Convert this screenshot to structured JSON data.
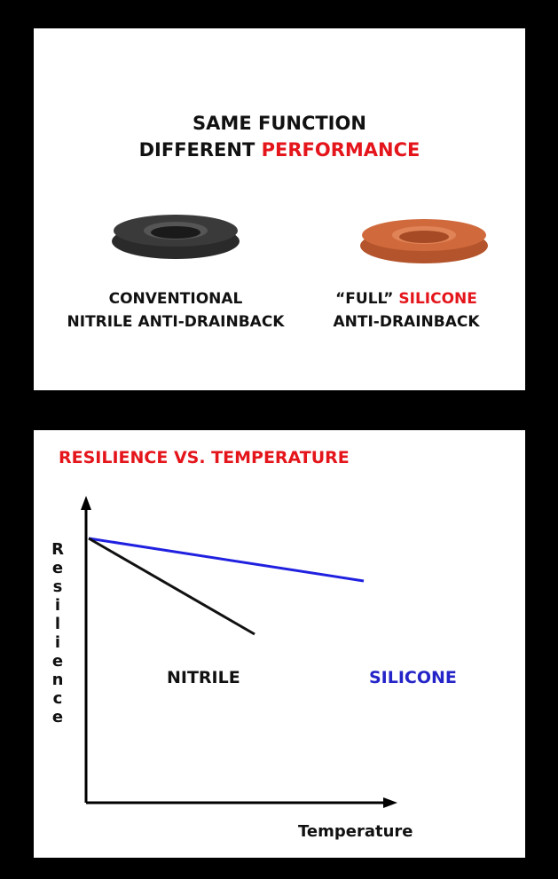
{
  "top_panel": {
    "title_line1": "SAME FUNCTION",
    "title_line2_a": "DIFFERENT",
    "title_line2_b": "PERFORMANCE",
    "left_label_line1": "CONVENTIONAL",
    "left_label_line2": "NITRILE ANTI-DRAINBACK",
    "right_label_line1_a": "“FULL”",
    "right_label_line1_b": "SILICONE",
    "right_label_line2": "ANTI-DRAINBACK"
  },
  "bottom_panel": {
    "title": "RESILIENCE VS. TEMPERATURE",
    "y_axis_label": "Resilience",
    "x_axis_label": "Temperature",
    "nitrile_label": "NITRILE",
    "silicone_label": "SILICONE"
  }
}
